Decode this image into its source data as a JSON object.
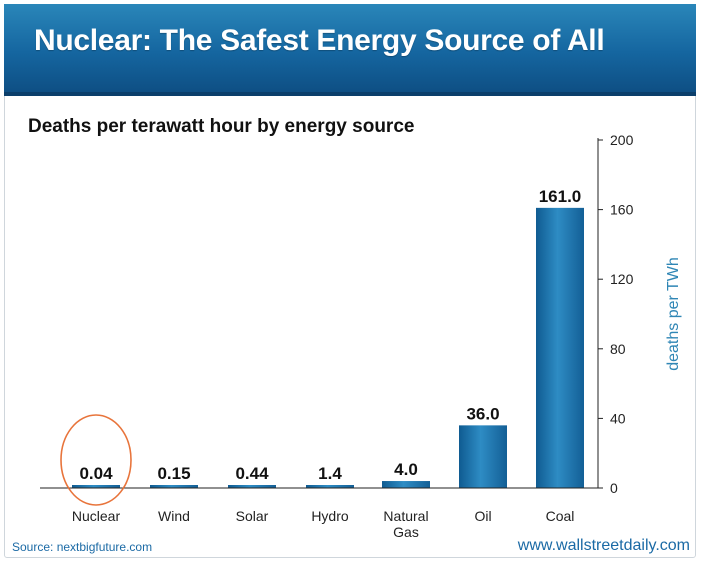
{
  "header": {
    "title": "Nuclear: The Safest Energy Source of All"
  },
  "footer": {
    "source": "Source: nextbigfuture.com",
    "site": "www.wallstreetdaily.com"
  },
  "colors": {
    "banner": "#1566a0",
    "bar": "#1a6ea8",
    "highlight": "#e8743b",
    "axis_label": "#2f86b5"
  },
  "chart_data": {
    "type": "bar",
    "title": "Deaths per terawatt hour by energy source",
    "xlabel": "",
    "ylabel": "deaths per TWh",
    "ylim": [
      0,
      200
    ],
    "yticks": [
      0,
      40,
      80,
      120,
      160,
      200
    ],
    "y_axis_side": "right",
    "grid": false,
    "categories": [
      "Nuclear",
      "Wind",
      "Solar",
      "Hydro",
      "Natural Gas",
      "Oil",
      "Coal"
    ],
    "category_labels": [
      [
        "Nuclear"
      ],
      [
        "Wind"
      ],
      [
        "Solar"
      ],
      [
        "Hydro"
      ],
      [
        "Natural",
        "Gas"
      ],
      [
        "Oil"
      ],
      [
        "Coal"
      ]
    ],
    "values": [
      0.04,
      0.15,
      0.44,
      1.4,
      4.0,
      36.0,
      161.0
    ],
    "value_labels": [
      "0.04",
      "0.15",
      "0.44",
      "1.4",
      "4.0",
      "36.0",
      "161.0"
    ],
    "highlighted_category": "Nuclear"
  }
}
